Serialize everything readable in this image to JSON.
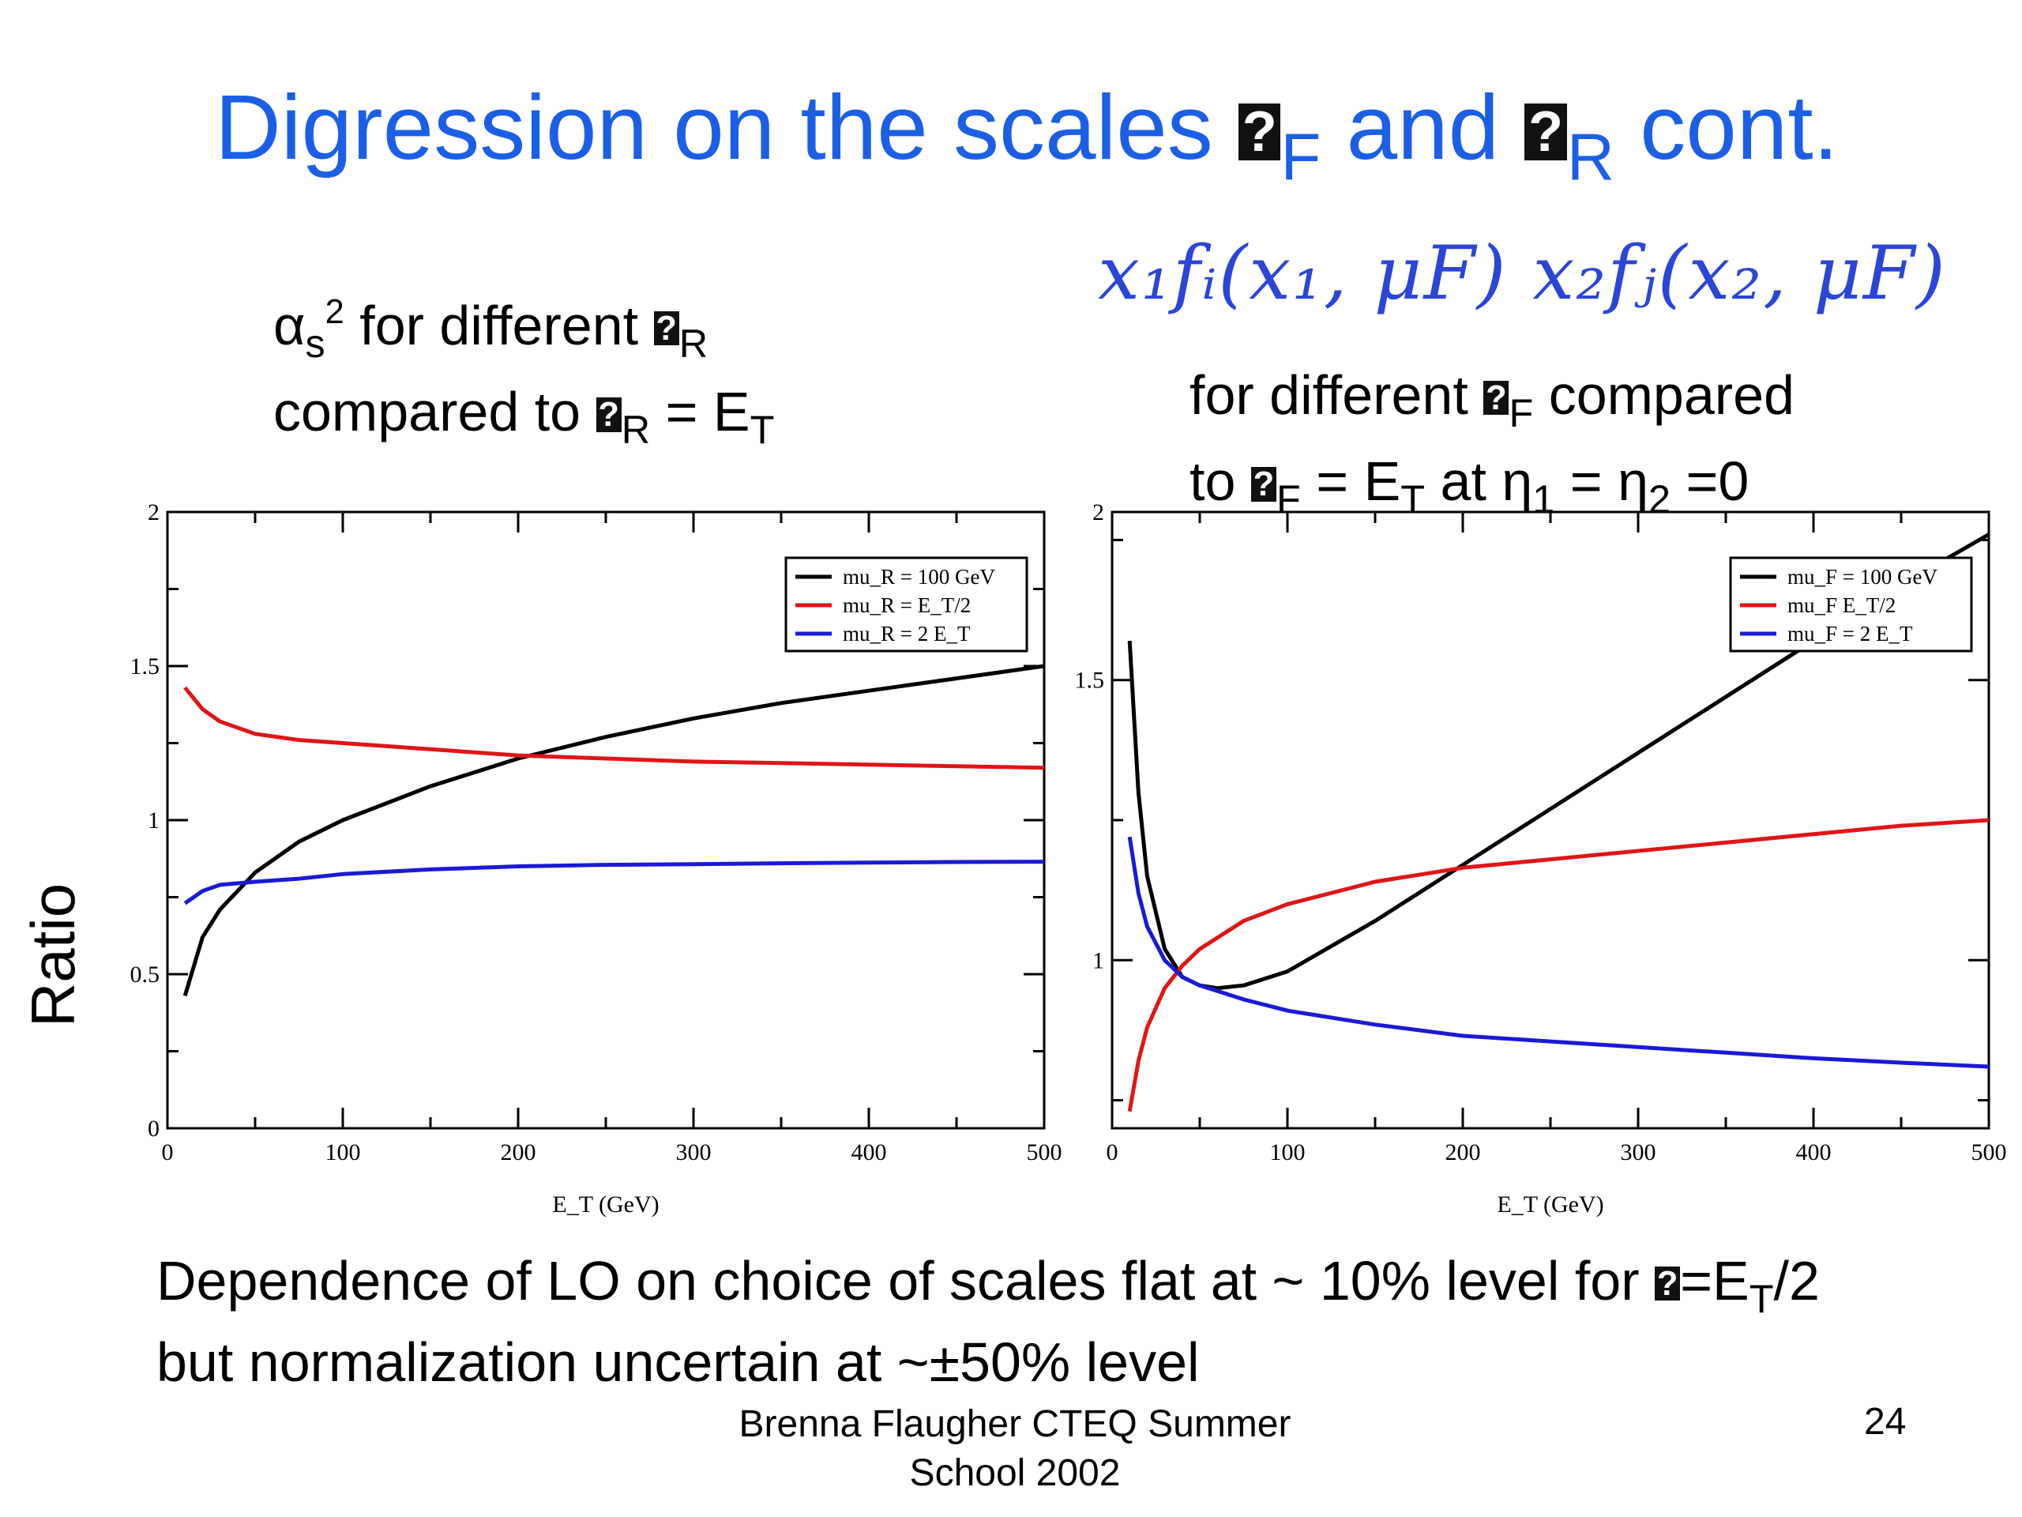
{
  "slide": {
    "title_part1": "Digression on the scales",
    "title_sub1": "F",
    "title_and": "and",
    "title_sub2": "R",
    "title_part2": "cont.",
    "left_caption": {
      "alpha": "α",
      "alpha_sub": "s",
      "alpha_sup": "2",
      "line1": "for different",
      "line1_sub": "R",
      "line2_a": "compared to",
      "line2_sub": "R",
      "line2_b": "= E",
      "line2_sub2": "T"
    },
    "formula": "x₁fᵢ(x₁, μF)  x₂fⱼ(x₂, μF)",
    "right_caption": {
      "line1_a": "for different",
      "line1_sub": "F",
      "line1_b": "compared",
      "line2_a": "to",
      "line2_sub": "F",
      "line2_b": "= E",
      "line2_sub2": "T",
      "line2_c": "at η",
      "line2_sub3": "1",
      "line2_d": "= η",
      "line2_sub4": "2",
      "line2_e": "=0"
    },
    "ratio_label": "Ratio",
    "bottom_line1_a": "Dependence of LO on choice of scales flat at ~ 10% level for",
    "bottom_line1_b": "=E",
    "bottom_line1_sub": "T",
    "bottom_line1_c": "/2",
    "bottom_line2": "but normalization uncertain at ~±50% level",
    "footer": "Brenna Flaugher CTEQ Summer School 2002",
    "page_number": "24"
  },
  "chart_data": [
    {
      "type": "line",
      "xlabel": "E_T (GeV)",
      "ylabel": "",
      "xlim": [
        0,
        500
      ],
      "ylim": [
        0,
        2
      ],
      "x_ticks": [
        "0",
        "100",
        "200",
        "300",
        "400",
        "500"
      ],
      "y_ticks": [
        "0",
        "0.5",
        "1",
        "1.5",
        "2"
      ],
      "legend_position": "top-right",
      "series": [
        {
          "name": "mu_R = 100 GeV",
          "color": "#000000",
          "x": [
            10,
            20,
            30,
            50,
            75,
            100,
            150,
            200,
            250,
            300,
            350,
            400,
            450,
            500
          ],
          "y": [
            0.43,
            0.62,
            0.71,
            0.83,
            0.93,
            1.0,
            1.11,
            1.2,
            1.27,
            1.33,
            1.38,
            1.42,
            1.46,
            1.5
          ]
        },
        {
          "name": "mu_R = E_T/2",
          "color": "#e01515",
          "x": [
            10,
            20,
            30,
            50,
            75,
            100,
            150,
            200,
            250,
            300,
            350,
            400,
            450,
            500
          ],
          "y": [
            1.43,
            1.36,
            1.32,
            1.28,
            1.26,
            1.25,
            1.23,
            1.21,
            1.2,
            1.19,
            1.185,
            1.18,
            1.175,
            1.17
          ]
        },
        {
          "name": "mu_R = 2 E_T",
          "color": "#1a1ad6",
          "x": [
            10,
            20,
            30,
            50,
            75,
            100,
            150,
            200,
            250,
            300,
            350,
            400,
            450,
            500
          ],
          "y": [
            0.73,
            0.77,
            0.79,
            0.8,
            0.81,
            0.825,
            0.84,
            0.85,
            0.855,
            0.857,
            0.86,
            0.862,
            0.864,
            0.865
          ]
        }
      ]
    },
    {
      "type": "line",
      "xlabel": "E_T (GeV)",
      "ylabel": "",
      "xlim": [
        0,
        500
      ],
      "ylim": [
        0.7,
        1.8
      ],
      "x_ticks": [
        "0",
        "100",
        "200",
        "300",
        "400",
        "500"
      ],
      "y_ticks": [
        "1",
        "1.5",
        "2"
      ],
      "legend_position": "top-right",
      "series": [
        {
          "name": "mu_F = 100 GeV",
          "color": "#000000",
          "x": [
            10,
            15,
            20,
            30,
            40,
            50,
            60,
            75,
            100,
            150,
            200,
            250,
            300,
            350,
            400,
            450,
            500
          ],
          "y": [
            1.57,
            1.3,
            1.15,
            1.02,
            0.97,
            0.955,
            0.95,
            0.955,
            0.98,
            1.07,
            1.17,
            1.27,
            1.37,
            1.47,
            1.57,
            1.67,
            1.76
          ]
        },
        {
          "name": "mu_F  E_T/2",
          "color": "#e01515",
          "x": [
            10,
            15,
            20,
            30,
            40,
            50,
            75,
            100,
            150,
            200,
            250,
            300,
            350,
            400,
            450,
            500
          ],
          "y": [
            0.73,
            0.82,
            0.88,
            0.95,
            0.99,
            1.02,
            1.07,
            1.1,
            1.14,
            1.165,
            1.18,
            1.195,
            1.21,
            1.225,
            1.24,
            1.25
          ]
        },
        {
          "name": "mu_F = 2 E_T",
          "color": "#1a1ad6",
          "x": [
            10,
            15,
            20,
            30,
            40,
            50,
            75,
            100,
            150,
            200,
            250,
            300,
            350,
            400,
            450,
            500
          ],
          "y": [
            1.22,
            1.12,
            1.06,
            1.0,
            0.97,
            0.955,
            0.93,
            0.91,
            0.885,
            0.865,
            0.855,
            0.845,
            0.835,
            0.825,
            0.817,
            0.81
          ]
        }
      ]
    }
  ]
}
